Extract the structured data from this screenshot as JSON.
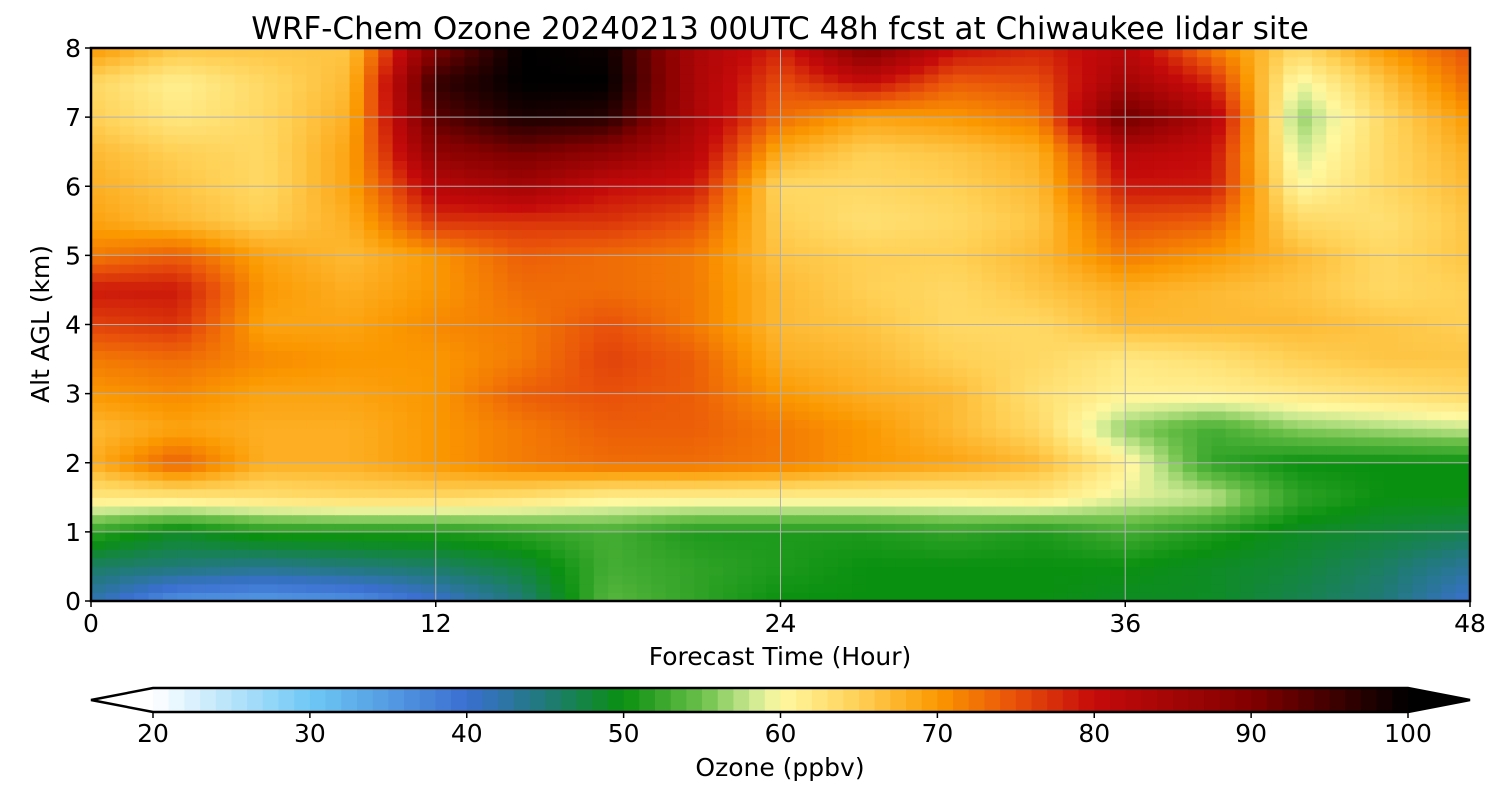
{
  "chart_data": {
    "type": "heatmap",
    "title": "WRF-Chem Ozone  20240213 00UTC 48h fcst at Chiwaukee lidar site",
    "xlabel": "Forecast Time (Hour)",
    "ylabel": "Alt AGL (km)",
    "xlim": [
      0,
      48
    ],
    "ylim": [
      0,
      8
    ],
    "xticks": [
      "0",
      "12",
      "24",
      "36",
      "48"
    ],
    "yticks": [
      "0",
      "1",
      "2",
      "3",
      "4",
      "5",
      "6",
      "7",
      "8"
    ],
    "grid": true,
    "x": [
      0,
      3,
      6,
      9,
      12,
      15,
      18,
      21,
      24,
      27,
      30,
      33,
      36,
      39,
      42,
      45,
      48
    ],
    "y": [
      0,
      0.5,
      1,
      1.5,
      2,
      2.5,
      3,
      3.5,
      4,
      4.5,
      5,
      5.5,
      6,
      6.5,
      7,
      7.5,
      8
    ],
    "z": [
      [
        42,
        36,
        35,
        36,
        40,
        45,
        54,
        52,
        50,
        50,
        50,
        50,
        49,
        49,
        47,
        45,
        40
      ],
      [
        46,
        45,
        44,
        45,
        46,
        48,
        53,
        52,
        51,
        50,
        50,
        50,
        50,
        49,
        48,
        46,
        43
      ],
      [
        52,
        49,
        51,
        51,
        51,
        52,
        53,
        51,
        51,
        51,
        52,
        51,
        53,
        51,
        49,
        48,
        47
      ],
      [
        62,
        62,
        63,
        64,
        64,
        63,
        61,
        61,
        61,
        61,
        61,
        62,
        59,
        58,
        52,
        50,
        50
      ],
      [
        68,
        74,
        68,
        68,
        70,
        72,
        73,
        73,
        72,
        70,
        69,
        67,
        61,
        52,
        50,
        50,
        50
      ],
      [
        67,
        69,
        68,
        68,
        70,
        72,
        74,
        74,
        72,
        70,
        67,
        64,
        56,
        53,
        56,
        57,
        58
      ],
      [
        70,
        71,
        69,
        69,
        70,
        74,
        75,
        74,
        70,
        68,
        67,
        63,
        61,
        61,
        62,
        63,
        64
      ],
      [
        72,
        73,
        71,
        70,
        70,
        72,
        76,
        74,
        68,
        67,
        65,
        64,
        62,
        63,
        65,
        66,
        66
      ],
      [
        76,
        77,
        69,
        69,
        71,
        72,
        75,
        72,
        67,
        66,
        64,
        64,
        67,
        67,
        67,
        66,
        65
      ],
      [
        79,
        79,
        70,
        68,
        70,
        73,
        73,
        72,
        67,
        65,
        64,
        66,
        68,
        67,
        66,
        64,
        65
      ],
      [
        72,
        74,
        69,
        67,
        70,
        74,
        73,
        72,
        66,
        65,
        65,
        67,
        72,
        70,
        67,
        64,
        66
      ],
      [
        69,
        67,
        65,
        68,
        77,
        77,
        77,
        75,
        65,
        63,
        64,
        66,
        75,
        74,
        64,
        63,
        66
      ],
      [
        68,
        66,
        64,
        69,
        82,
        85,
        80,
        79,
        64,
        64,
        65,
        67,
        79,
        79,
        60,
        64,
        67
      ],
      [
        67,
        65,
        64,
        69,
        88,
        91,
        88,
        82,
        68,
        65,
        66,
        68,
        82,
        80,
        58,
        64,
        68
      ],
      [
        65,
        62,
        64,
        68,
        93,
        98,
        97,
        84,
        73,
        69,
        70,
        72,
        92,
        83,
        56,
        64,
        70
      ],
      [
        64,
        61,
        64,
        67,
        96,
        100,
        100,
        84,
        75,
        80,
        74,
        75,
        85,
        78,
        59,
        66,
        73
      ],
      [
        70,
        66,
        66,
        66,
        90,
        100,
        99,
        84,
        78,
        90,
        80,
        78,
        82,
        72,
        64,
        70,
        75
      ]
    ],
    "colorbar": {
      "label": "Ozone  (ppbv)",
      "ticks": [
        "20",
        "30",
        "40",
        "50",
        "60",
        "70",
        "80",
        "90",
        "100"
      ],
      "range": [
        20,
        100
      ],
      "extend": "both",
      "colormap": [
        [
          20,
          "#ffffff"
        ],
        [
          30,
          "#6ec8f5"
        ],
        [
          40,
          "#3a6fd0"
        ],
        [
          45,
          "#207a78"
        ],
        [
          50,
          "#0a9010"
        ],
        [
          55,
          "#6cc04a"
        ],
        [
          58,
          "#c8e890"
        ],
        [
          60,
          "#fff8a0"
        ],
        [
          65,
          "#ffd055"
        ],
        [
          70,
          "#fb9800"
        ],
        [
          75,
          "#e8500a"
        ],
        [
          80,
          "#c50a0a"
        ],
        [
          90,
          "#820000"
        ],
        [
          100,
          "#000000"
        ]
      ]
    }
  }
}
